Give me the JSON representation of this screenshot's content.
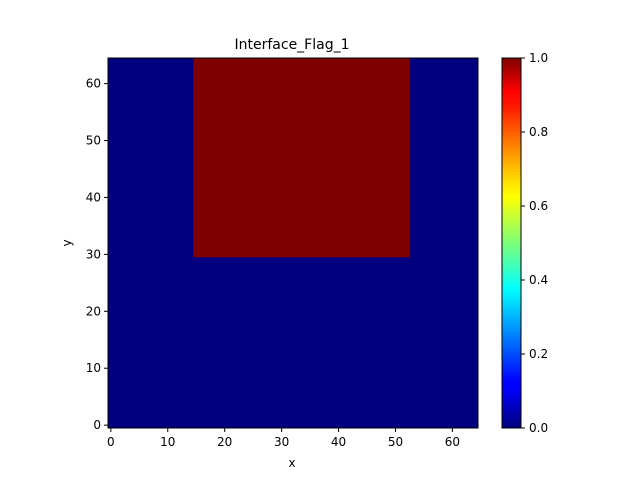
{
  "chart_data": {
    "type": "heatmap",
    "title": "Interface_Flag_1",
    "xlabel": "x",
    "ylabel": "y",
    "xlim": [
      -0.5,
      64.5
    ],
    "ylim": [
      -0.5,
      64.5
    ],
    "xticks": [
      0,
      10,
      20,
      30,
      40,
      50,
      60
    ],
    "yticks": [
      0,
      10,
      20,
      30,
      40,
      50,
      60
    ],
    "grid": false,
    "colormap": "jet",
    "colorbar": {
      "range": [
        0.0,
        1.0
      ],
      "ticks": [
        "0.0",
        "0.2",
        "0.4",
        "0.6",
        "0.8",
        "1.0"
      ]
    },
    "background_value": 0.0,
    "regions": [
      {
        "value": 1.0,
        "x_range": [
          15,
          52
        ],
        "y_range": [
          30,
          64
        ]
      }
    ],
    "colors": {
      "low": "#00007f",
      "high": "#7f0000"
    }
  }
}
